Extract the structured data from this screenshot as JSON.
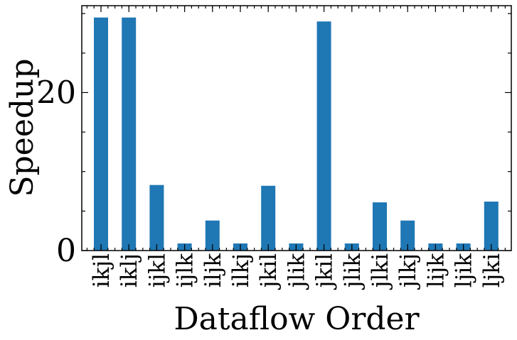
{
  "chart_data": {
    "type": "bar",
    "title": "",
    "xlabel": "Dataflow Order",
    "ylabel": "Speedup",
    "categories": [
      "ikjl",
      "iklj",
      "ijkl",
      "ijlk",
      "iljk",
      "ilkj",
      "jkil",
      "jlik",
      "jkil",
      "jlik",
      "jlki",
      "jlkj",
      "lijk",
      "ljik",
      "ljki"
    ],
    "values": [
      29.5,
      29.5,
      8.3,
      0.9,
      3.8,
      0.9,
      8.2,
      0.9,
      29.0,
      0.9,
      6.1,
      3.8,
      0.9,
      0.9,
      6.2
    ],
    "ylim": [
      0,
      31
    ],
    "yticks": [
      0,
      20
    ],
    "ytick_labels": [
      "0",
      "20"
    ],
    "grid": false,
    "legend": "none",
    "bar_color": "#1f77b4"
  }
}
